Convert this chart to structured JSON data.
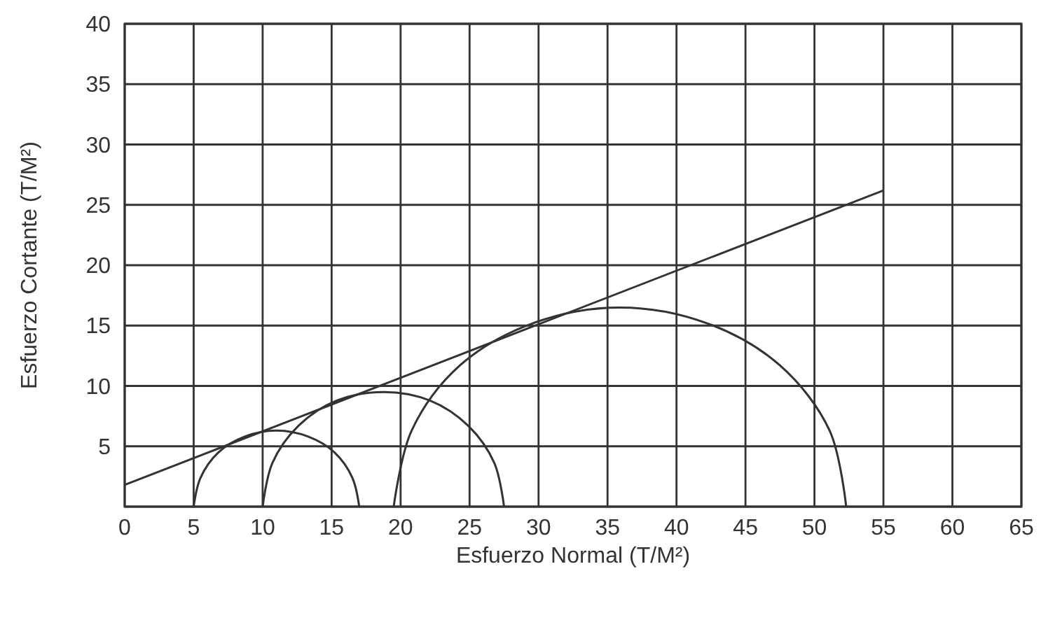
{
  "chart_data": {
    "type": "line",
    "xlabel": "Esfuerzo Normal (T/M²)",
    "ylabel": "Esfuerzo Cortante (T/M²)",
    "xlim": [
      0,
      65
    ],
    "ylim": [
      0,
      40
    ],
    "xticks": [
      0,
      5,
      10,
      15,
      20,
      25,
      30,
      35,
      40,
      45,
      50,
      55,
      60,
      65
    ],
    "yticks": [
      {
        "value": 0,
        "label": null
      },
      5,
      10,
      15,
      20,
      25,
      30,
      35,
      40
    ],
    "grid": true,
    "marker": "none",
    "line_style": "solid",
    "series": [
      {
        "color": "#333333",
        "x": [
          0,
          55
        ],
        "values": [
          1.8,
          26.2
        ]
      },
      {
        "color": "#333333",
        "x": [
          5,
          5.5,
          6.8,
          8.7,
          11,
          13.3,
          15.2,
          16.5,
          17
        ],
        "values": [
          0,
          2.4,
          4.5,
          5.8,
          6.3,
          5.8,
          4.5,
          2.4,
          0
        ]
      },
      {
        "color": "#333333",
        "x": [
          10,
          10.7,
          12.6,
          15.4,
          18.8,
          22.1,
          24.9,
          26.8,
          27.5
        ],
        "values": [
          0,
          3.6,
          6.7,
          8.8,
          9.5,
          8.8,
          6.7,
          3.6,
          0
        ]
      },
      {
        "color": "#333333",
        "x": [
          19.5,
          20.8,
          24.3,
          29.6,
          35.9,
          42.2,
          47.5,
          51.1,
          52.3
        ],
        "values": [
          0,
          6.3,
          11.7,
          15.2,
          16.5,
          15.2,
          11.7,
          6.3,
          0
        ]
      }
    ]
  }
}
